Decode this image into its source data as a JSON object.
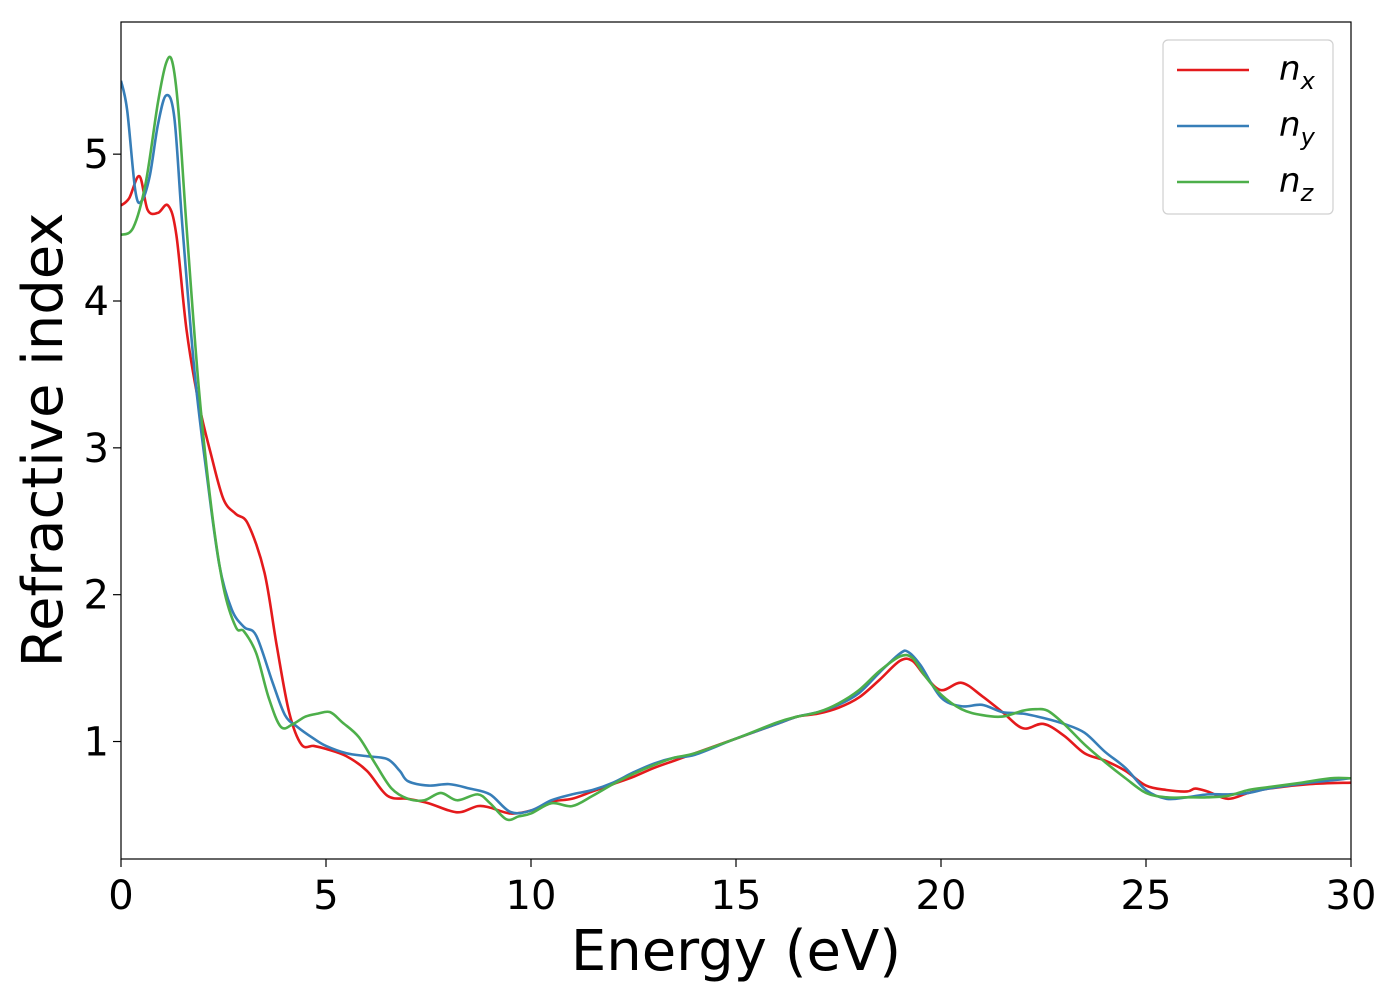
{
  "chart_data": {
    "type": "line",
    "title": "",
    "xlabel": "Energy (eV)",
    "ylabel": "Refractive index",
    "xlim": [
      0,
      30
    ],
    "ylim": [
      0.2,
      5.9
    ],
    "xticks": [
      0,
      5,
      10,
      15,
      20,
      25,
      30
    ],
    "yticks": [
      1,
      2,
      3,
      4,
      5
    ],
    "grid": false,
    "legend_position": "top-right",
    "series": [
      {
        "name": "n",
        "subscript": "x",
        "color": "#e41a1c",
        "x": [
          0,
          0.2,
          0.45,
          0.65,
          0.9,
          1.15,
          1.35,
          1.6,
          1.9,
          2.2,
          2.5,
          2.8,
          3.1,
          3.5,
          3.8,
          4.1,
          4.4,
          4.7,
          5.0,
          5.5,
          6.0,
          6.5,
          7.0,
          7.5,
          8.0,
          8.3,
          8.7,
          9.0,
          9.5,
          10.0,
          10.5,
          11.0,
          11.5,
          12.0,
          12.5,
          13.0,
          13.5,
          14.0,
          15.0,
          16.0,
          16.5,
          17.0,
          17.5,
          18.0,
          18.5,
          19.0,
          19.3,
          19.6,
          20.0,
          20.5,
          21.0,
          21.5,
          22.0,
          22.5,
          23.0,
          23.5,
          24.0,
          24.5,
          25.0,
          25.5,
          26.0,
          26.2,
          26.5,
          27.0,
          27.5,
          28.0,
          29.0,
          30.0
        ],
        "y": [
          4.65,
          4.7,
          4.85,
          4.62,
          4.6,
          4.65,
          4.45,
          3.8,
          3.3,
          2.95,
          2.65,
          2.55,
          2.48,
          2.15,
          1.65,
          1.2,
          0.98,
          0.97,
          0.95,
          0.9,
          0.8,
          0.63,
          0.61,
          0.58,
          0.53,
          0.52,
          0.56,
          0.55,
          0.51,
          0.53,
          0.59,
          0.61,
          0.66,
          0.71,
          0.76,
          0.82,
          0.87,
          0.92,
          1.02,
          1.12,
          1.17,
          1.19,
          1.23,
          1.3,
          1.42,
          1.55,
          1.55,
          1.45,
          1.35,
          1.4,
          1.31,
          1.2,
          1.09,
          1.12,
          1.04,
          0.92,
          0.87,
          0.8,
          0.7,
          0.67,
          0.66,
          0.68,
          0.66,
          0.61,
          0.65,
          0.68,
          0.71,
          0.72
        ]
      },
      {
        "name": "n",
        "subscript": "y",
        "color": "#377eb8",
        "x": [
          0,
          0.15,
          0.35,
          0.5,
          0.7,
          0.9,
          1.1,
          1.3,
          1.5,
          1.8,
          2.1,
          2.4,
          2.7,
          3.0,
          3.3,
          3.7,
          4.0,
          4.3,
          4.7,
          5.0,
          5.5,
          6.0,
          6.5,
          6.8,
          7.0,
          7.5,
          8.0,
          8.5,
          9.0,
          9.5,
          10.0,
          10.5,
          11.0,
          11.5,
          12.0,
          12.5,
          13.0,
          13.5,
          14.0,
          15.0,
          16.0,
          16.5,
          17.0,
          17.5,
          18.0,
          18.5,
          19.0,
          19.2,
          19.5,
          20.0,
          20.5,
          21.0,
          21.5,
          22.0,
          22.5,
          23.0,
          23.5,
          24.0,
          24.5,
          25.0,
          25.5,
          26.0,
          26.5,
          27.0,
          27.5,
          28.0,
          29.0,
          30.0
        ],
        "y": [
          5.5,
          5.3,
          4.75,
          4.68,
          4.85,
          5.2,
          5.4,
          5.25,
          4.5,
          3.5,
          2.8,
          2.2,
          1.9,
          1.78,
          1.72,
          1.4,
          1.18,
          1.1,
          1.02,
          0.97,
          0.92,
          0.9,
          0.88,
          0.8,
          0.73,
          0.7,
          0.71,
          0.68,
          0.64,
          0.52,
          0.53,
          0.6,
          0.64,
          0.67,
          0.72,
          0.79,
          0.85,
          0.89,
          0.91,
          1.02,
          1.12,
          1.17,
          1.2,
          1.25,
          1.33,
          1.47,
          1.6,
          1.61,
          1.52,
          1.3,
          1.24,
          1.25,
          1.2,
          1.19,
          1.16,
          1.12,
          1.06,
          0.93,
          0.82,
          0.67,
          0.61,
          0.62,
          0.64,
          0.64,
          0.65,
          0.68,
          0.72,
          0.75
        ]
      },
      {
        "name": "n",
        "subscript": "z",
        "color": "#4daf4a",
        "x": [
          0,
          0.3,
          0.6,
          0.9,
          1.1,
          1.25,
          1.4,
          1.6,
          1.9,
          2.2,
          2.5,
          2.8,
          3.0,
          3.3,
          3.6,
          3.9,
          4.2,
          4.5,
          4.8,
          5.1,
          5.4,
          5.8,
          6.2,
          6.6,
          7.0,
          7.4,
          7.8,
          8.2,
          8.7,
          9.0,
          9.4,
          9.7,
          10.0,
          10.5,
          11.0,
          11.5,
          12.0,
          12.5,
          13.0,
          13.5,
          14.0,
          15.0,
          16.0,
          16.5,
          17.0,
          17.5,
          18.0,
          18.5,
          19.0,
          19.3,
          19.6,
          20.0,
          20.5,
          21.0,
          21.5,
          22.0,
          22.3,
          22.6,
          23.0,
          23.5,
          24.0,
          24.5,
          25.0,
          25.5,
          26.0,
          26.5,
          27.0,
          27.5,
          28.0,
          28.8,
          29.5,
          30.0
        ],
        "y": [
          4.45,
          4.5,
          4.8,
          5.35,
          5.62,
          5.63,
          5.3,
          4.5,
          3.4,
          2.6,
          2.05,
          1.78,
          1.75,
          1.6,
          1.3,
          1.1,
          1.12,
          1.17,
          1.19,
          1.2,
          1.13,
          1.03,
          0.85,
          0.68,
          0.61,
          0.6,
          0.65,
          0.6,
          0.64,
          0.58,
          0.47,
          0.49,
          0.51,
          0.58,
          0.56,
          0.63,
          0.71,
          0.78,
          0.84,
          0.89,
          0.92,
          1.02,
          1.13,
          1.17,
          1.2,
          1.26,
          1.35,
          1.48,
          1.58,
          1.57,
          1.45,
          1.32,
          1.22,
          1.18,
          1.17,
          1.21,
          1.22,
          1.21,
          1.12,
          0.98,
          0.86,
          0.75,
          0.65,
          0.62,
          0.62,
          0.62,
          0.63,
          0.67,
          0.69,
          0.72,
          0.75,
          0.75
        ]
      }
    ]
  }
}
